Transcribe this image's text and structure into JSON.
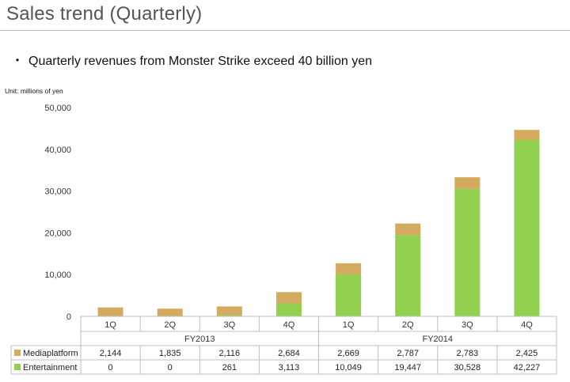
{
  "header": {
    "title": "Sales trend (Quarterly)",
    "bullet_mark": "・",
    "bullet": "Quarterly revenues from Monster Strike exceed 40 billion yen"
  },
  "chart_data": {
    "type": "bar",
    "stacked": true,
    "unit": "Unit: millions of yen",
    "categories": [
      "1Q",
      "2Q",
      "3Q",
      "4Q",
      "1Q",
      "2Q",
      "3Q",
      "4Q"
    ],
    "groups": [
      {
        "label": "FY2013",
        "span": 4
      },
      {
        "label": "FY2014",
        "span": 4
      }
    ],
    "series": [
      {
        "name": "Entertainment",
        "color": "#92d050",
        "values": [
          0,
          0,
          261,
          3113,
          10049,
          19447,
          30528,
          42227
        ]
      },
      {
        "name": "Mediaplatform",
        "color": "#d4aa5f",
        "values": [
          2144,
          1835,
          2116,
          2684,
          2669,
          2787,
          2783,
          2425
        ]
      }
    ],
    "ylim": [
      0,
      50000
    ],
    "yticks": [
      0,
      10000,
      20000,
      30000,
      40000,
      50000
    ],
    "ytick_labels": [
      "0",
      "10,000",
      "20,000",
      "30,000",
      "40,000",
      "50,000"
    ],
    "table_rows": [
      {
        "label": "Mediaplatform",
        "color": "#d4aa5f",
        "cells": [
          "2,144",
          "1,835",
          "2,116",
          "2,684",
          "2,669",
          "2,787",
          "2,783",
          "2,425"
        ]
      },
      {
        "label": "Entertainment",
        "color": "#92d050",
        "cells": [
          "0",
          "0",
          "261",
          "3,113",
          "10,049",
          "19,447",
          "30,528",
          "42,227"
        ]
      }
    ],
    "grid": false,
    "legend": "table"
  }
}
